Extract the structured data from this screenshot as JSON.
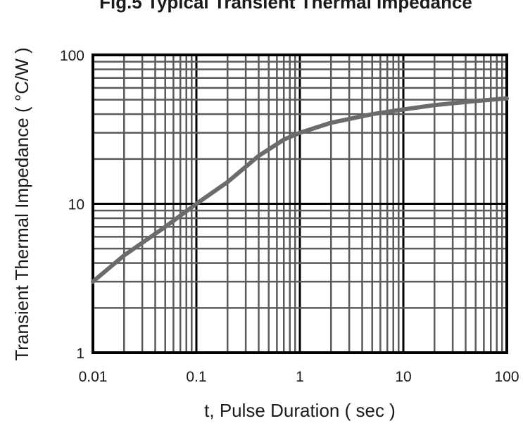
{
  "chart_data": {
    "type": "line",
    "title": "Fig.5 Typical Transient Thermal Impedance",
    "xlabel": "t, Pulse Duration ( sec )",
    "ylabel": "Transient Thermal Impedance ( °C/W )",
    "xscale": "log",
    "yscale": "log",
    "xlim": [
      0.01,
      100
    ],
    "ylim": [
      1,
      100
    ],
    "x_ticks": [
      {
        "value": 0.01,
        "label": "0.01"
      },
      {
        "value": 0.1,
        "label": "0.1"
      },
      {
        "value": 1,
        "label": "1"
      },
      {
        "value": 10,
        "label": "10"
      },
      {
        "value": 100,
        "label": "100"
      }
    ],
    "y_ticks": [
      {
        "value": 1,
        "label": "1"
      },
      {
        "value": 10,
        "label": "10"
      },
      {
        "value": 100,
        "label": "100"
      }
    ],
    "grid": true,
    "line_color": "#6b6b6b",
    "grid_color": "#5a5a5a",
    "series": [
      {
        "x": [
          0.01,
          0.02,
          0.05,
          0.1,
          0.2,
          0.4,
          0.7,
          1,
          2,
          5,
          10,
          20,
          50,
          100
        ],
        "y": [
          3,
          4.5,
          7,
          10,
          14,
          21,
          27,
          30,
          35,
          40,
          43,
          46,
          49,
          51
        ]
      }
    ]
  }
}
